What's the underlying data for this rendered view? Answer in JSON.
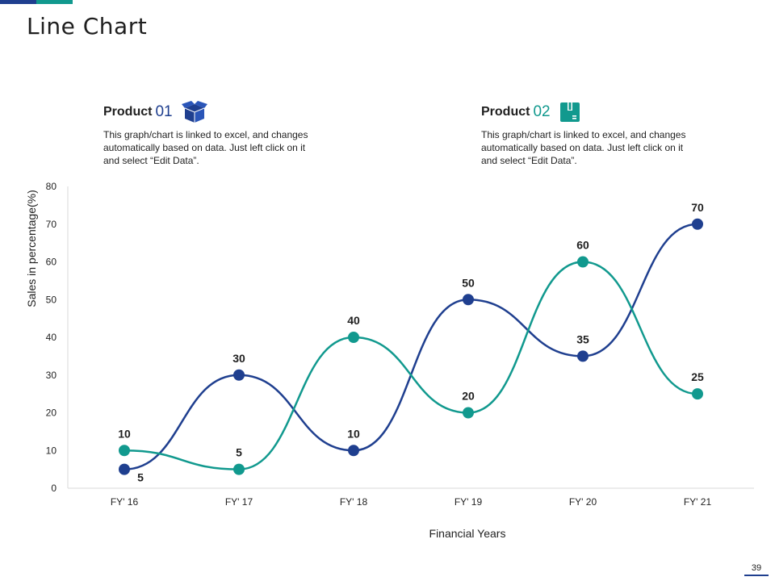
{
  "slide": {
    "title": "Line Chart",
    "page_number": "39"
  },
  "products": [
    {
      "label": "Product",
      "number": "01",
      "icon": "open-box-icon",
      "color": "#1f3f8f",
      "description": "This graph/chart is linked to excel, and changes automatically based on data. Just left click on it and select “Edit Data”."
    },
    {
      "label": "Product",
      "number": "02",
      "icon": "package-box-icon",
      "color": "#11998e",
      "description": "This graph/chart is linked to excel, and changes automatically based on data. Just left click on it and select “Edit Data”."
    }
  ],
  "chart_data": {
    "type": "line",
    "smooth": true,
    "categories": [
      "FY' 16",
      "FY' 17",
      "FY' 18",
      "FY' 19",
      "FY' 20",
      "FY' 21"
    ],
    "series": [
      {
        "values": [
          5,
          30,
          10,
          50,
          35,
          70
        ],
        "color": "#1f3f8f"
      },
      {
        "values": [
          10,
          5,
          40,
          20,
          60,
          25
        ],
        "color": "#11998e"
      }
    ],
    "xlabel": "Financial Years",
    "ylabel": "Sales in percentage(%)",
    "ylim": [
      0,
      80
    ],
    "yticks": [
      0,
      10,
      20,
      30,
      40,
      50,
      60,
      70,
      80
    ],
    "grid": false,
    "data_labels": true
  }
}
